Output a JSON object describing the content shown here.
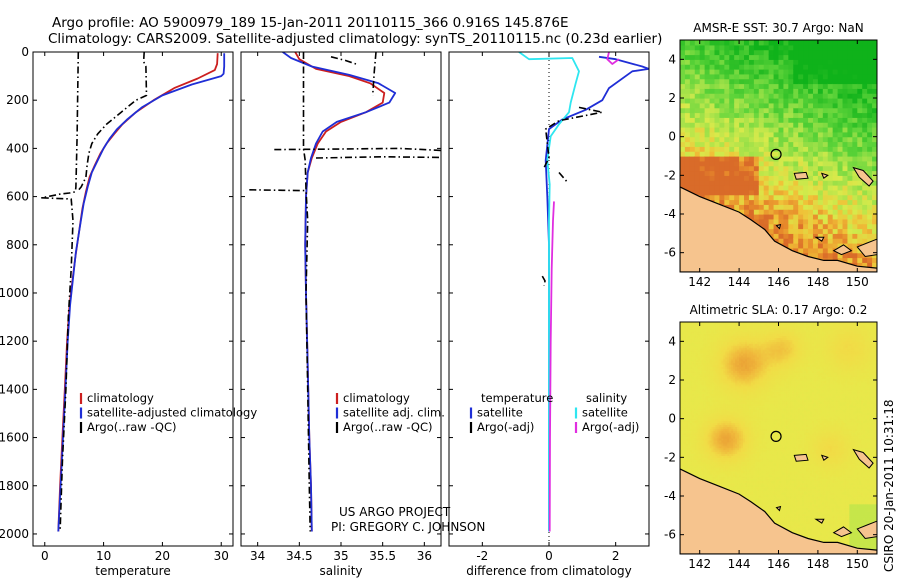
{
  "figure": {
    "title_line1": "Argo profile: AO 5900979_189 15-Jan-2011 20110115_366 0.916S 145.876E",
    "title_line2": "Climatology: CARS2009. Satellite-adjusted climatology: synTS_20110115.nc (0.23d earlier)",
    "credit_line1": "US ARGO PROJECT",
    "credit_line2": "PI: GREGORY C. JOHNSON",
    "side_stamp": "CSIRO 20-Jan-2011 10:31:18"
  },
  "colors": {
    "climatology": "#cc1f1f",
    "satellite": "#1f2ed6",
    "argo": "#000000",
    "diff_salinity_sat": "#2ee6f0",
    "diff_salinity_argo": "#e02ee0",
    "land": "#f6c48e",
    "coast": "#000000"
  },
  "chart_data": [
    {
      "type": "line",
      "panel": "temperature",
      "xlabel": "temperature",
      "xlim": [
        -2,
        32
      ],
      "ylim": [
        2050,
        0
      ],
      "y_reversed": true,
      "xticks": [
        0,
        10,
        20,
        30
      ],
      "yticks": [
        0,
        200,
        400,
        600,
        800,
        1000,
        1200,
        1400,
        1600,
        1800,
        2000
      ],
      "legend": [
        "climatology",
        "satellite-adjusted climatology",
        "Argo(..raw -QC)"
      ],
      "legend_position": "lower-right",
      "series": [
        {
          "name": "climatology",
          "style": "solid",
          "color": "#cc1f1f",
          "points": [
            [
              29.4,
              5
            ],
            [
              29.3,
              50
            ],
            [
              28.9,
              75
            ],
            [
              26,
              110
            ],
            [
              22,
              150
            ],
            [
              18.5,
              200
            ],
            [
              15.5,
              250
            ],
            [
              13.2,
              300
            ],
            [
              11.8,
              340
            ],
            [
              10.5,
              380
            ],
            [
              9.5,
              420
            ],
            [
              8.5,
              470
            ],
            [
              7.6,
              520
            ],
            [
              7,
              580
            ],
            [
              6.4,
              650
            ],
            [
              5.8,
              750
            ],
            [
              5.2,
              850
            ],
            [
              4.7,
              950
            ],
            [
              4.2,
              1050
            ],
            [
              3.8,
              1200
            ],
            [
              3.4,
              1400
            ],
            [
              3,
              1600
            ],
            [
              2.6,
              1800
            ],
            [
              2.3,
              1990
            ]
          ]
        },
        {
          "name": "satellite-adjusted climatology",
          "style": "solid",
          "color": "#1f2ed6",
          "points": [
            [
              30.5,
              5
            ],
            [
              30.5,
              60
            ],
            [
              30.4,
              90
            ],
            [
              30,
              100
            ],
            [
              25,
              135
            ],
            [
              20,
              180
            ],
            [
              16.5,
              230
            ],
            [
              14,
              280
            ],
            [
              12.3,
              320
            ],
            [
              11,
              360
            ],
            [
              10,
              400
            ],
            [
              9,
              450
            ],
            [
              8,
              500
            ],
            [
              7.3,
              560
            ],
            [
              6.6,
              630
            ],
            [
              6,
              720
            ],
            [
              5.3,
              830
            ],
            [
              4.8,
              940
            ],
            [
              4.3,
              1050
            ],
            [
              3.9,
              1200
            ],
            [
              3.5,
              1400
            ],
            [
              3.1,
              1600
            ],
            [
              2.7,
              1800
            ],
            [
              2.3,
              1990
            ]
          ]
        },
        {
          "name": "Argo(..raw -QC)",
          "style": "dashdot",
          "color": "#000000",
          "points": [
            [
              5.7,
              0
            ],
            [
              5.6,
              170
            ],
            [
              5.5,
              350
            ],
            [
              5.3,
              560
            ],
            [
              5.2,
              580
            ],
            [
              4.2,
              585
            ],
            [
              2.5,
              590
            ],
            [
              0.5,
              600
            ],
            [
              -0.5,
              605
            ],
            [
              4.5,
              610
            ],
            [
              4.8,
              700
            ],
            [
              4.5,
              900
            ],
            [
              4,
              1100
            ],
            [
              3.6,
              1400
            ],
            [
              3,
              1700
            ],
            [
              2.6,
              1990
            ]
          ]
        },
        {
          "name": "",
          "style": "dashdot",
          "color": "#000000",
          "points": [
            [
              16.9,
              0
            ],
            [
              16.8,
              40
            ],
            [
              17.2,
              60
            ],
            [
              17.3,
              180
            ],
            [
              15.5,
              200
            ],
            [
              13,
              250
            ],
            [
              10.5,
              300
            ],
            [
              9,
              340
            ],
            [
              8,
              380
            ],
            [
              7.5,
              420
            ],
            [
              7.2,
              470
            ],
            [
              7,
              520
            ],
            [
              6.2,
              560
            ],
            [
              5.5,
              580
            ]
          ]
        }
      ]
    },
    {
      "type": "line",
      "panel": "salinity",
      "xlabel": "salinity",
      "xlim": [
        33.8,
        36.2
      ],
      "ylim": [
        2050,
        0
      ],
      "y_reversed": true,
      "xticks": [
        34,
        34.5,
        35,
        35.5,
        36
      ],
      "legend": [
        "climatology",
        "satellite adj. clim.",
        "Argo(..raw -QC)"
      ],
      "legend_position": "lower-right",
      "series": [
        {
          "name": "climatology",
          "style": "solid",
          "color": "#cc1f1f",
          "points": [
            [
              34.45,
              0
            ],
            [
              34.5,
              30
            ],
            [
              34.7,
              70
            ],
            [
              35.1,
              100
            ],
            [
              35.35,
              130
            ],
            [
              35.52,
              170
            ],
            [
              35.5,
              210
            ],
            [
              35.3,
              250
            ],
            [
              35,
              290
            ],
            [
              34.82,
              330
            ],
            [
              34.72,
              380
            ],
            [
              34.65,
              440
            ],
            [
              34.6,
              500
            ],
            [
              34.58,
              600
            ],
            [
              34.57,
              800
            ],
            [
              34.58,
              1000
            ],
            [
              34.6,
              1300
            ],
            [
              34.62,
              1600
            ],
            [
              34.64,
              1800
            ],
            [
              34.65,
              1990
            ]
          ]
        },
        {
          "name": "satellite adj. clim.",
          "style": "solid",
          "color": "#1f2ed6",
          "points": [
            [
              34.3,
              0
            ],
            [
              34.4,
              25
            ],
            [
              34.65,
              60
            ],
            [
              35.1,
              95
            ],
            [
              35.45,
              130
            ],
            [
              35.65,
              170
            ],
            [
              35.58,
              210
            ],
            [
              35.3,
              250
            ],
            [
              34.95,
              290
            ],
            [
              34.78,
              330
            ],
            [
              34.7,
              380
            ],
            [
              34.64,
              440
            ],
            [
              34.6,
              500
            ],
            [
              34.58,
              600
            ],
            [
              34.57,
              800
            ],
            [
              34.58,
              1000
            ],
            [
              34.6,
              1300
            ],
            [
              34.62,
              1600
            ],
            [
              34.64,
              1800
            ],
            [
              34.65,
              1990
            ]
          ]
        },
        {
          "name": "Argo(..raw -QC)",
          "style": "dashdot",
          "color": "#000000",
          "points": [
            [
              34.55,
              0
            ],
            [
              34.55,
              200
            ],
            [
              34.55,
              400
            ],
            [
              34.57,
              450
            ],
            [
              34.58,
              570
            ],
            [
              34.6,
              700
            ],
            [
              34.58,
              1000
            ],
            [
              34.6,
              1400
            ],
            [
              34.62,
              1800
            ],
            [
              34.63,
              1990
            ]
          ]
        },
        {
          "name": "",
          "style": "dashdot",
          "color": "#000000",
          "points": [
            [
              35.42,
              0
            ],
            [
              35.4,
              80
            ],
            [
              35.38,
              180
            ]
          ]
        },
        {
          "name": "",
          "style": "dashdot",
          "color": "#000000",
          "points": [
            [
              34.88,
              20
            ],
            [
              35.05,
              35
            ],
            [
              35.18,
              50
            ]
          ]
        },
        {
          "name": "",
          "style": "dashdot",
          "color": "#000000",
          "points": [
            [
              34.2,
              405
            ],
            [
              34.9,
              403
            ],
            [
              35.7,
              400
            ],
            [
              36.3,
              410
            ]
          ]
        },
        {
          "name": "",
          "style": "dashdot",
          "color": "#000000",
          "points": [
            [
              34.7,
              440
            ],
            [
              35.5,
              435
            ],
            [
              36.3,
              438
            ]
          ]
        },
        {
          "name": "",
          "style": "dashdot",
          "color": "#000000",
          "points": [
            [
              33.9,
              572
            ],
            [
              34.3,
              574
            ],
            [
              34.56,
              575
            ]
          ]
        }
      ]
    },
    {
      "type": "line",
      "panel": "difference",
      "xlabel": "difference from climatology",
      "xlim": [
        -3,
        3
      ],
      "ylim": [
        2050,
        0
      ],
      "y_reversed": true,
      "xticks": [
        -2,
        0,
        2
      ],
      "legend_columns": [
        {
          "heading": "temperature",
          "entries": [
            "satellite",
            "Argo(-adj)"
          ]
        },
        {
          "heading": "salinity",
          "entries": [
            "satellite",
            "Argo(-adj)"
          ]
        }
      ],
      "legend_position": "lower-center",
      "series": [
        {
          "name": "temperature satellite",
          "style": "solid",
          "color": "#1f2ed6",
          "points": [
            [
              1.5,
              20
            ],
            [
              2,
              30
            ],
            [
              2.8,
              60
            ],
            [
              3,
              70
            ],
            [
              2.5,
              80
            ],
            [
              1.8,
              150
            ],
            [
              1.6,
              200
            ],
            [
              1.1,
              240
            ],
            [
              0.4,
              280
            ],
            [
              0,
              320
            ],
            [
              -0.1,
              450
            ],
            [
              -0.05,
              600
            ],
            [
              0,
              800
            ],
            [
              0,
              1200
            ],
            [
              0,
              1600
            ],
            [
              0,
              1990
            ]
          ]
        },
        {
          "name": "salinity satellite",
          "style": "solid",
          "color": "#2ee6f0",
          "points": [
            [
              -0.9,
              0
            ],
            [
              -0.6,
              30
            ],
            [
              0.7,
              25
            ],
            [
              0.9,
              80
            ],
            [
              0.8,
              130
            ],
            [
              0.65,
              210
            ],
            [
              0.6,
              250
            ],
            [
              0.3,
              300
            ],
            [
              0.05,
              350
            ],
            [
              -0.05,
              450
            ],
            [
              0.02,
              550
            ],
            [
              0,
              700
            ],
            [
              0,
              1000
            ],
            [
              0,
              1400
            ],
            [
              0,
              1990
            ]
          ]
        },
        {
          "name": "temperature Argo(-adj)",
          "style": "dashdot",
          "color": "#000000",
          "points": [
            [
              0.9,
              230
            ],
            [
              1.6,
              250
            ],
            [
              0.3,
              285
            ],
            [
              -0.1,
              320
            ],
            [
              0,
              440
            ],
            [
              -0.15,
              480
            ]
          ]
        },
        {
          "name": "",
          "style": "dashdot",
          "color": "#000000",
          "points": [
            [
              -0.2,
              930
            ],
            [
              -0.12,
              950
            ],
            [
              -0.15,
              970
            ]
          ]
        },
        {
          "name": "",
          "style": "dashdot",
          "color": "#000000",
          "points": [
            [
              0.3,
              500
            ],
            [
              0.55,
              540
            ]
          ]
        },
        {
          "name": "salinity Argo(-adj)",
          "style": "solid",
          "color": "#e02ee0",
          "points": [
            [
              1.8,
              0
            ],
            [
              1.75,
              30
            ],
            [
              1.9,
              50
            ],
            [
              2.1,
              30
            ]
          ]
        },
        {
          "name": "",
          "style": "solid",
          "color": "#e02ee0",
          "points": [
            [
              0.15,
              620
            ],
            [
              0.12,
              700
            ],
            [
              0.08,
              900
            ],
            [
              0.05,
              1200
            ],
            [
              0.03,
              1600
            ],
            [
              0.02,
              1990
            ]
          ]
        }
      ]
    },
    {
      "type": "heatmap",
      "panel": "map-sst",
      "title": "AMSR-E SST: 30.7 Argo: NaN",
      "xlim": [
        141,
        151
      ],
      "ylim": [
        -7,
        5
      ],
      "xticks": [
        142,
        144,
        146,
        148,
        150
      ],
      "yticks": [
        -6,
        -4,
        -2,
        0,
        2,
        4
      ],
      "argo_position": [
        145.876,
        -0.916
      ]
    },
    {
      "type": "heatmap",
      "panel": "map-sla",
      "title": "Altimetric SLA: 0.17 Argo: 0.2",
      "xlim": [
        141,
        151
      ],
      "ylim": [
        -7,
        5
      ],
      "xticks": [
        142,
        144,
        146,
        148,
        150
      ],
      "yticks": [
        -6,
        -4,
        -2,
        0,
        2,
        4
      ],
      "argo_position": [
        145.876,
        -0.916
      ]
    }
  ]
}
